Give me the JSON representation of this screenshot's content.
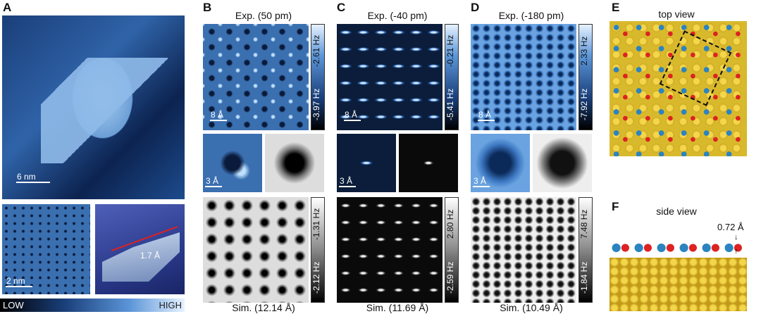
{
  "panels": {
    "A": {
      "label": "A",
      "scale_main": "6 nm",
      "scale_small": "2 nm",
      "height": "1.7 Å",
      "colorbar_low": "LOW",
      "colorbar_high": "HIGH"
    },
    "B": {
      "label": "B",
      "exp_title": "Exp.  (50 pm)",
      "exp_top": "-2.61 Hz",
      "exp_bottom": "-3.97 Hz",
      "scale_exp": "8 Å",
      "scale_zoom": "3 Å",
      "sim_top": "-1.31 Hz",
      "sim_bottom": "-2.12 Hz",
      "sim_title": "Sim.  (12.14 Å)"
    },
    "C": {
      "label": "C",
      "exp_title": "Exp.  (-40 pm)",
      "exp_top": "-0.21 Hz",
      "exp_bottom": "-5.41 Hz",
      "scale_exp": "8 Å",
      "scale_zoom": "3 Å",
      "sim_top": "2.80 Hz",
      "sim_bottom": "-2.59 Hz",
      "sim_title": "Sim.  (11.69 Å)"
    },
    "D": {
      "label": "D",
      "exp_title": "Exp.  (-180 pm)",
      "exp_top": "2.33 Hz",
      "exp_bottom": "-7.92 Hz",
      "scale_exp": "8 Å",
      "scale_zoom": "3 Å",
      "sim_top": "7.48 Hz",
      "sim_bottom": "-1.84 Hz",
      "sim_title": "Sim.  (10.49 Å)"
    },
    "E": {
      "label": "E",
      "title": "top view"
    },
    "F": {
      "label": "F",
      "title": "side view",
      "offset": "0.72 Å"
    }
  },
  "colors": {
    "blue_colormap_top": "#cfe6ff",
    "blue_colormap_bottom": "#000000"
  }
}
